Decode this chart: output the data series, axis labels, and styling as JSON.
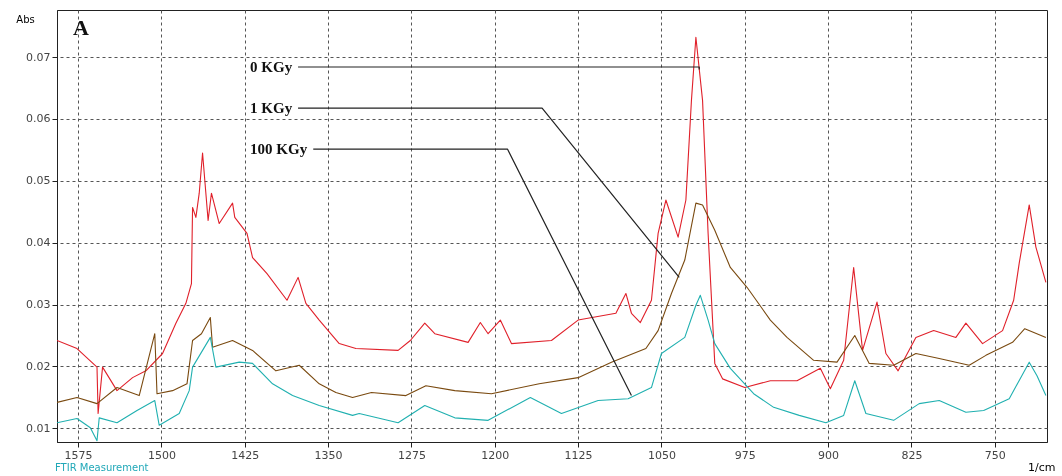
{
  "chart_data": {
    "type": "line",
    "xlabel": "1/cm",
    "ylabel": "Abs",
    "xlim": [
      1594,
      703
    ],
    "ylim": [
      0.0078,
      0.0776
    ],
    "xticks": [
      1575,
      1500,
      1425,
      1350,
      1275,
      1200,
      1125,
      1050,
      975,
      900,
      825,
      750
    ],
    "yticks": [
      0.01,
      0.02,
      0.03,
      0.04,
      0.05,
      0.06,
      0.07
    ],
    "grid": true,
    "line_style": "solid",
    "marker": "none",
    "annotations": [
      "A",
      {
        "text": "0 KGy",
        "x": 1016,
        "y": 0.068
      },
      {
        "text": "1 KGy",
        "x": 1034,
        "y": 0.0344
      },
      {
        "text": "100 KGy",
        "x": 1077,
        "y": 0.0153
      },
      "FTIR Measurement"
    ],
    "series": [
      {
        "color": "#e0202a",
        "x": [
          1594,
          1576,
          1558,
          1557,
          1553,
          1540,
          1526,
          1514,
          1499,
          1487,
          1478,
          1473,
          1472,
          1469,
          1466,
          1463,
          1458,
          1455,
          1448,
          1436,
          1434,
          1423,
          1418,
          1405,
          1387,
          1377,
          1370,
          1358,
          1340,
          1325,
          1287,
          1276,
          1263,
          1254,
          1224,
          1213,
          1206,
          1195,
          1185,
          1149,
          1125,
          1091,
          1082,
          1077,
          1069,
          1059,
          1053,
          1046,
          1035,
          1028,
          1023,
          1019,
          1013,
          1008,
          1002,
          995,
          975,
          952,
          928,
          907,
          898,
          886,
          877,
          869,
          856,
          848,
          837,
          821,
          805,
          785,
          776,
          761,
          743,
          733,
          728,
          719,
          713,
          704
        ],
        "values": [
          0.0242,
          0.0229,
          0.0199,
          0.0124,
          0.0199,
          0.0161,
          0.0182,
          0.0193,
          0.0221,
          0.027,
          0.0302,
          0.0334,
          0.0457,
          0.0441,
          0.048,
          0.0545,
          0.0436,
          0.048,
          0.0431,
          0.0464,
          0.0441,
          0.0415,
          0.0376,
          0.035,
          0.0307,
          0.0344,
          0.0302,
          0.0275,
          0.0237,
          0.0229,
          0.0226,
          0.0242,
          0.027,
          0.0253,
          0.0239,
          0.0271,
          0.0253,
          0.0275,
          0.0237,
          0.0242,
          0.0275,
          0.0286,
          0.0318,
          0.0286,
          0.0271,
          0.0307,
          0.0415,
          0.0469,
          0.0409,
          0.0469,
          0.063,
          0.0732,
          0.063,
          0.0415,
          0.0205,
          0.018,
          0.0166,
          0.0177,
          0.0177,
          0.0197,
          0.0164,
          0.021,
          0.036,
          0.0226,
          0.0304,
          0.0221,
          0.0193,
          0.0247,
          0.0258,
          0.0247,
          0.027,
          0.0237,
          0.0258,
          0.0307,
          0.0367,
          0.0461,
          0.0393,
          0.0336
        ]
      },
      {
        "color": "#7a4a10",
        "x": [
          1594,
          1576,
          1558,
          1540,
          1520,
          1506,
          1504,
          1490,
          1477,
          1472,
          1464,
          1456,
          1454,
          1436,
          1418,
          1397,
          1376,
          1358,
          1343,
          1328,
          1311,
          1280,
          1262,
          1236,
          1203,
          1160,
          1125,
          1095,
          1064,
          1053,
          1041,
          1029,
          1019,
          1013,
          1002,
          988,
          973,
          952,
          937,
          913,
          892,
          876,
          863,
          841,
          821,
          800,
          773,
          758,
          734,
          723,
          704
        ],
        "values": [
          0.0142,
          0.015,
          0.014,
          0.0166,
          0.0153,
          0.0253,
          0.0156,
          0.0161,
          0.0172,
          0.0242,
          0.0253,
          0.0279,
          0.0231,
          0.0242,
          0.0226,
          0.0193,
          0.0202,
          0.0172,
          0.0158,
          0.015,
          0.0158,
          0.0153,
          0.0169,
          0.0161,
          0.0156,
          0.0172,
          0.0182,
          0.0207,
          0.0229,
          0.0258,
          0.0318,
          0.0372,
          0.0464,
          0.0461,
          0.042,
          0.036,
          0.0328,
          0.0275,
          0.0247,
          0.021,
          0.0207,
          0.025,
          0.0205,
          0.0202,
          0.0221,
          0.0213,
          0.0202,
          0.0218,
          0.0239,
          0.0261,
          0.0247
        ]
      },
      {
        "color": "#20b0b0",
        "x": [
          1594,
          1576,
          1564,
          1558,
          1556,
          1540,
          1522,
          1506,
          1502,
          1484,
          1475,
          1472,
          1463,
          1456,
          1451,
          1430,
          1418,
          1400,
          1382,
          1358,
          1328,
          1322,
          1287,
          1263,
          1236,
          1206,
          1168,
          1140,
          1107,
          1080,
          1059,
          1050,
          1029,
          1019,
          1015,
          1008,
          1002,
          988,
          967,
          949,
          926,
          902,
          886,
          876,
          866,
          841,
          818,
          800,
          776,
          760,
          737,
          719,
          712,
          704
        ],
        "values": [
          0.0109,
          0.0116,
          0.0101,
          0.008,
          0.0117,
          0.0109,
          0.0129,
          0.0145,
          0.0105,
          0.0124,
          0.0161,
          0.0199,
          0.0226,
          0.0247,
          0.0199,
          0.0207,
          0.0205,
          0.0172,
          0.0153,
          0.0137,
          0.0121,
          0.0124,
          0.0109,
          0.0137,
          0.0117,
          0.0113,
          0.015,
          0.0124,
          0.0145,
          0.0148,
          0.0166,
          0.0221,
          0.0247,
          0.0299,
          0.0315,
          0.0275,
          0.0237,
          0.0197,
          0.0156,
          0.0134,
          0.0121,
          0.0109,
          0.0121,
          0.0177,
          0.0124,
          0.0113,
          0.014,
          0.0145,
          0.0126,
          0.0129,
          0.0148,
          0.0207,
          0.0185,
          0.0153
        ]
      }
    ]
  }
}
